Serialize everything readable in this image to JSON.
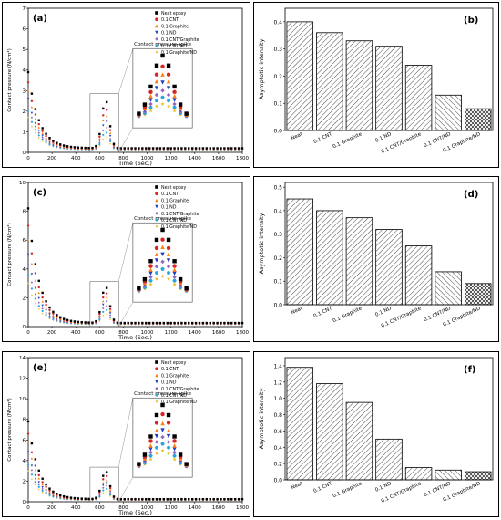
{
  "series_names": [
    "Neat epoxy",
    "0.1 CNT",
    "0.1 Graphite",
    "0.1 ND",
    "0.1 CNT/Graphite",
    "0.1 CNT/ND",
    "0.1 Graphite/ND"
  ],
  "series_colors": [
    "#000000",
    "#d62728",
    "#ff7f0e",
    "#1f3fbf",
    "#9467bd",
    "#29a8e0",
    "#e8c020"
  ],
  "chart_data": [
    {
      "type": "scatter",
      "panel_label": "(a)",
      "xlabel": "Time (Sec.)",
      "ylabel": "Contact pressure (N/cm²)",
      "xlim": [
        0,
        1800
      ],
      "ylim": [
        0,
        7
      ],
      "xticks": [
        0,
        200,
        400,
        600,
        800,
        1000,
        1200,
        1400,
        1600,
        1800
      ],
      "yticks": [
        0,
        1,
        2,
        3,
        4,
        5,
        6,
        7
      ],
      "inset_label": "Contact pressure spike",
      "spike_peaks": [
        2.55,
        2.15,
        1.85,
        1.55,
        1.25,
        1.0,
        0.75
      ],
      "initial_values": [
        3.9,
        3.4,
        3.0,
        2.6,
        2.3,
        2.0,
        1.7
      ],
      "baseline": 0.2
    },
    {
      "type": "bar",
      "panel_label": "(b)",
      "ylabel": "Asymptotic intensity",
      "categories": [
        "Neat",
        "0.1 CNT",
        "0.1 Graphite",
        "0.1 ND",
        "0.1 CNT/Graphite",
        "0.1 CNT/ND",
        "0.1 Graphite/ND"
      ],
      "values": [
        0.4,
        0.36,
        0.33,
        0.31,
        0.24,
        0.13,
        0.08
      ],
      "ylim": [
        0,
        0.45
      ],
      "yticks": [
        0.0,
        0.1,
        0.2,
        0.3,
        0.4
      ]
    },
    {
      "type": "scatter",
      "panel_label": "(c)",
      "xlabel": "Time (Sec.)",
      "ylabel": "Contact pressure (N/cm²)",
      "xlim": [
        0,
        1800
      ],
      "ylim": [
        0,
        10
      ],
      "xticks": [
        0,
        200,
        400,
        600,
        800,
        1000,
        1200,
        1400,
        1600,
        1800
      ],
      "yticks": [
        0,
        2,
        4,
        6,
        8,
        10
      ],
      "inset_label": "Contact pressure spike",
      "spike_peaks": [
        2.8,
        2.4,
        2.1,
        1.8,
        1.5,
        1.2,
        0.9
      ],
      "initial_values": [
        8.2,
        7.0,
        6.0,
        5.0,
        4.2,
        3.6,
        3.0
      ],
      "baseline": 0.25
    },
    {
      "type": "bar",
      "panel_label": "(d)",
      "ylabel": "Asymptotic intensity",
      "categories": [
        "Neat",
        "0.1 CNT",
        "0.1 Graphite",
        "0.1 ND",
        "0.1 CNT/Graphite",
        "0.1 CNT/ND",
        "0.1 Graphite/ND"
      ],
      "values": [
        0.45,
        0.4,
        0.37,
        0.32,
        0.25,
        0.14,
        0.09
      ],
      "ylim": [
        0,
        0.52
      ],
      "yticks": [
        0.0,
        0.1,
        0.2,
        0.3,
        0.4,
        0.5
      ]
    },
    {
      "type": "scatter",
      "panel_label": "(e)",
      "xlabel": "Time (Sec.)",
      "ylabel": "Contact pressure (N/cm²)",
      "xlim": [
        0,
        1800
      ],
      "ylim": [
        0,
        14
      ],
      "xticks": [
        0,
        200,
        400,
        600,
        800,
        1000,
        1200,
        1400,
        1600,
        1800
      ],
      "yticks": [
        0,
        2,
        4,
        6,
        8,
        10,
        12,
        14
      ],
      "inset_label": "Contact pressure spike",
      "spike_peaks": [
        3.0,
        2.6,
        2.2,
        1.9,
        1.6,
        1.3,
        1.0
      ],
      "initial_values": [
        7.8,
        6.6,
        5.8,
        4.8,
        4.2,
        3.6,
        3.0
      ],
      "baseline": 0.25
    },
    {
      "type": "bar",
      "panel_label": "(f)",
      "ylabel": "Asymptotic intensity",
      "categories": [
        "Neat",
        "0.1 CNT",
        "0.1 Graphite",
        "0.1 ND",
        "0.1 CNT/Graphite",
        "0.1 CNT/ND",
        "0.1 Graphite/ND"
      ],
      "values": [
        1.38,
        1.18,
        0.95,
        0.5,
        0.15,
        0.12,
        0.1
      ],
      "ylim": [
        0,
        1.5
      ],
      "yticks": [
        0.0,
        0.2,
        0.4,
        0.6,
        0.8,
        1.0,
        1.2,
        1.4
      ]
    }
  ]
}
